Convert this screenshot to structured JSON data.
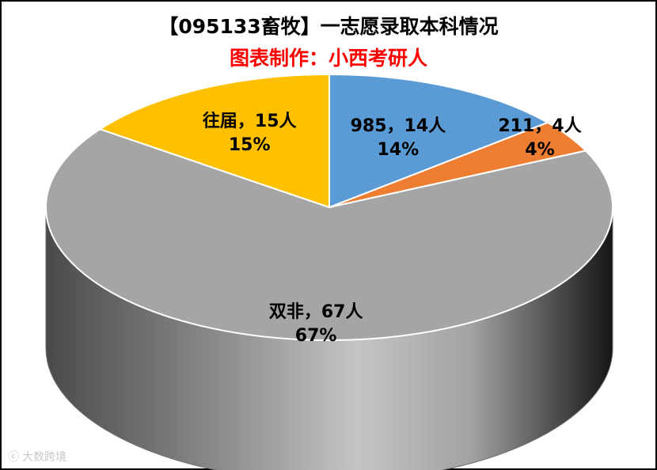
{
  "chart_data": {
    "type": "pie",
    "title": "【095133畜牧】一志愿录取本科情况",
    "subtitle": "图表制作：小西考研人",
    "slices": [
      {
        "name": "985",
        "count": 14,
        "percent": 14,
        "label_line1": "985，14人",
        "label_line2": "14%",
        "color": "#5b9bd5"
      },
      {
        "name": "211",
        "count": 4,
        "percent": 4,
        "label_line1": "211，4人",
        "label_line2": "4%",
        "color": "#ed7d31"
      },
      {
        "name": "双非",
        "count": 67,
        "percent": 67,
        "label_line1": "双非，67人",
        "label_line2": "67%",
        "color": "#a5a5a5"
      },
      {
        "name": "往届",
        "count": 15,
        "percent": 15,
        "label_line1": "往届，15人",
        "label_line2": "15%",
        "color": "#ffc000"
      }
    ]
  },
  "watermark": {
    "text": "大数跨境",
    "icon": "brand-logo-icon"
  }
}
